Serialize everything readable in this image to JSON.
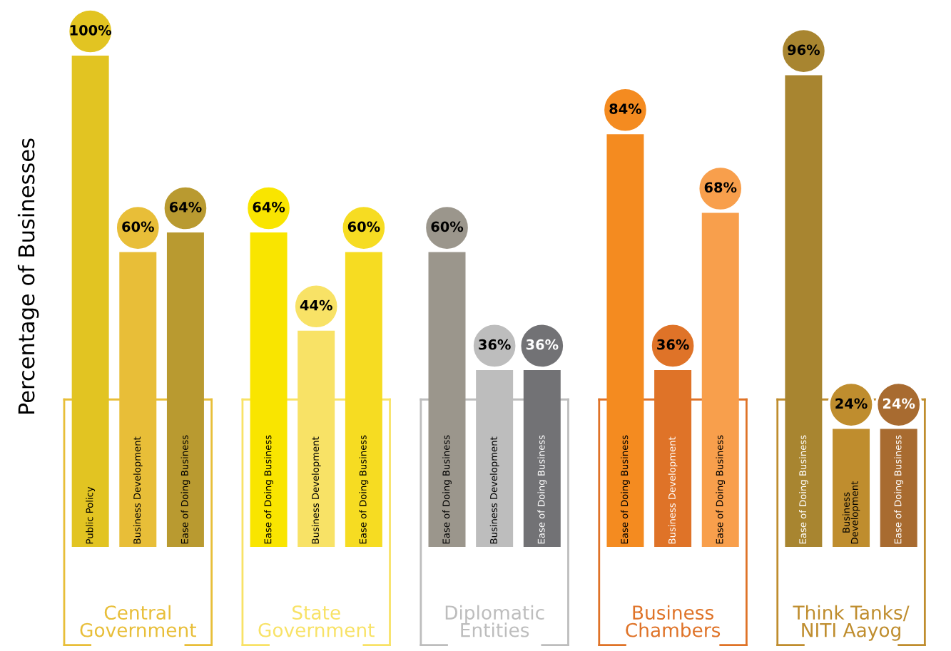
{
  "chart_data": {
    "type": "bar",
    "ylabel": "Percentage of Businesses",
    "categories": [
      "Public Policy",
      "Business Development",
      "Ease of Doing Business",
      "Ease of Doing Business",
      "Business Development",
      "Ease of Doing Business",
      "Ease of Doing Business",
      "Business Development",
      "Ease of Doing Business",
      "Ease of Doing Business",
      "Business Development",
      "Ease of Doing Business",
      "Ease of Doing Business",
      "Business\nDevelopment",
      "Ease of Doing Business"
    ],
    "values": [
      100,
      60,
      64,
      64,
      44,
      60,
      60,
      36,
      36,
      84,
      36,
      68,
      96,
      24,
      24
    ],
    "value_labels": [
      "100%",
      "60%",
      "64%",
      "64%",
      "44%",
      "60%",
      "60%",
      "36%",
      "36%",
      "84%",
      "36%",
      "68%",
      "96%",
      "24%",
      "24%"
    ],
    "colors": [
      "#e2c422",
      "#e8be38",
      "#b99a30",
      "#f9e500",
      "#f8e266",
      "#f6dc22",
      "#9b968c",
      "#bdbdbd",
      "#727275",
      "#f48b20",
      "#df7328",
      "#f89f4c",
      "#a88530",
      "#bf8d2e",
      "#a86b30"
    ],
    "annotations": [
      "Central\nGovernment",
      "State\nGovernment",
      "Diplomatic\nEntities",
      "Business\nChambers",
      "Think Tanks/\nNITI Aayog"
    ],
    "legend": false
  }
}
